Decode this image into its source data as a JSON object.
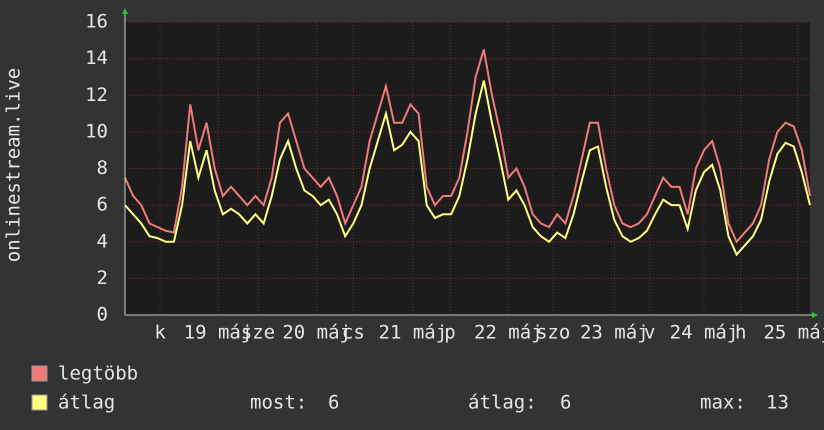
{
  "chart_data": {
    "type": "line",
    "y_label": "onlinestream.live",
    "x": [
      0,
      2,
      4,
      6,
      8,
      10,
      12,
      14,
      16,
      18,
      20,
      22,
      24,
      26,
      28,
      30,
      32,
      34,
      36,
      38,
      40,
      42,
      44,
      46,
      48,
      50,
      52,
      54,
      56,
      58,
      60,
      62,
      64,
      66,
      68,
      70,
      72,
      74,
      76,
      78,
      80,
      82,
      84,
      86,
      88,
      90,
      92,
      94,
      96,
      98,
      100,
      102,
      104,
      106,
      108,
      110,
      112,
      114,
      116,
      118,
      120,
      122,
      124,
      126,
      128,
      130,
      132,
      134,
      136,
      138,
      140,
      142,
      144,
      146,
      148,
      150,
      152,
      154,
      156,
      158,
      160,
      162,
      164,
      166,
      168
    ],
    "series": [
      {
        "name": "legtöbb",
        "color": "#f07a7a",
        "values": [
          7.5,
          6.5,
          6,
          5,
          4.8,
          4.6,
          4.5,
          7,
          11.5,
          9,
          10.5,
          8,
          6.5,
          7,
          6.5,
          6,
          6.5,
          6,
          7.5,
          10.5,
          11,
          9.5,
          8,
          7.5,
          7,
          7.5,
          6.5,
          5,
          6,
          7,
          9.5,
          11,
          12.5,
          10.5,
          10.5,
          11.5,
          11,
          7,
          6,
          6.5,
          6.5,
          7.5,
          10,
          13,
          14.5,
          12,
          10,
          7.5,
          8,
          7,
          5.5,
          5,
          4.8,
          5.5,
          5,
          6.5,
          8.5,
          10.5,
          10.5,
          8,
          6,
          5,
          4.8,
          5,
          5.5,
          6.5,
          7.5,
          7,
          7,
          5.5,
          8,
          9,
          9.5,
          8,
          5,
          4,
          4.5,
          5,
          6,
          8.5,
          10,
          10.5,
          10.3,
          9,
          6.5
        ]
      },
      {
        "name": "átlag",
        "color": "#ffff80",
        "values": [
          6,
          5.5,
          5,
          4.3,
          4.2,
          4,
          4,
          6,
          9.5,
          7.5,
          9,
          6.8,
          5.5,
          5.8,
          5.5,
          5,
          5.5,
          5,
          6.5,
          8.5,
          9.5,
          8,
          6.8,
          6.5,
          6,
          6.3,
          5.5,
          4.3,
          5,
          6,
          8,
          9.5,
          11,
          9,
          9.3,
          10,
          9.5,
          6,
          5.3,
          5.5,
          5.5,
          6.5,
          8.5,
          11,
          12.8,
          10.5,
          8.5,
          6.3,
          6.8,
          6,
          4.8,
          4.3,
          4,
          4.5,
          4.2,
          5.5,
          7.3,
          9,
          9.2,
          7,
          5.2,
          4.3,
          4,
          4.2,
          4.6,
          5.5,
          6.3,
          6,
          6,
          4.7,
          6.8,
          7.8,
          8.2,
          6.8,
          4.3,
          3.3,
          3.8,
          4.3,
          5.2,
          7.3,
          8.8,
          9.4,
          9.2,
          7.8,
          6
        ]
      }
    ],
    "stats": [
      {
        "label": "most:",
        "value": 6
      },
      {
        "label": "átlag:",
        "value": 6
      },
      {
        "label": "max:",
        "value": 13
      }
    ],
    "xlim": [
      0,
      168
    ],
    "xticks": [
      {
        "value": 8.6,
        "label": "k"
      },
      {
        "value": 22.8,
        "label": "19 máj"
      },
      {
        "value": 32.6,
        "label": "sze"
      },
      {
        "value": 47,
        "label": "20 máj"
      },
      {
        "value": 56,
        "label": "cs"
      },
      {
        "value": 70.6,
        "label": "21 máj"
      },
      {
        "value": 79.7,
        "label": "p"
      },
      {
        "value": 94,
        "label": "22 máj"
      },
      {
        "value": 105,
        "label": "szo"
      },
      {
        "value": 120,
        "label": "23 máj"
      },
      {
        "value": 128.7,
        "label": "v"
      },
      {
        "value": 142,
        "label": "24 máj"
      },
      {
        "value": 151,
        "label": "h"
      },
      {
        "value": 165,
        "label": "25 máj"
      }
    ],
    "ylim": [
      0,
      16
    ],
    "yticks": [
      0,
      2,
      4,
      6,
      8,
      10,
      12,
      14,
      16
    ],
    "grid": true
  }
}
